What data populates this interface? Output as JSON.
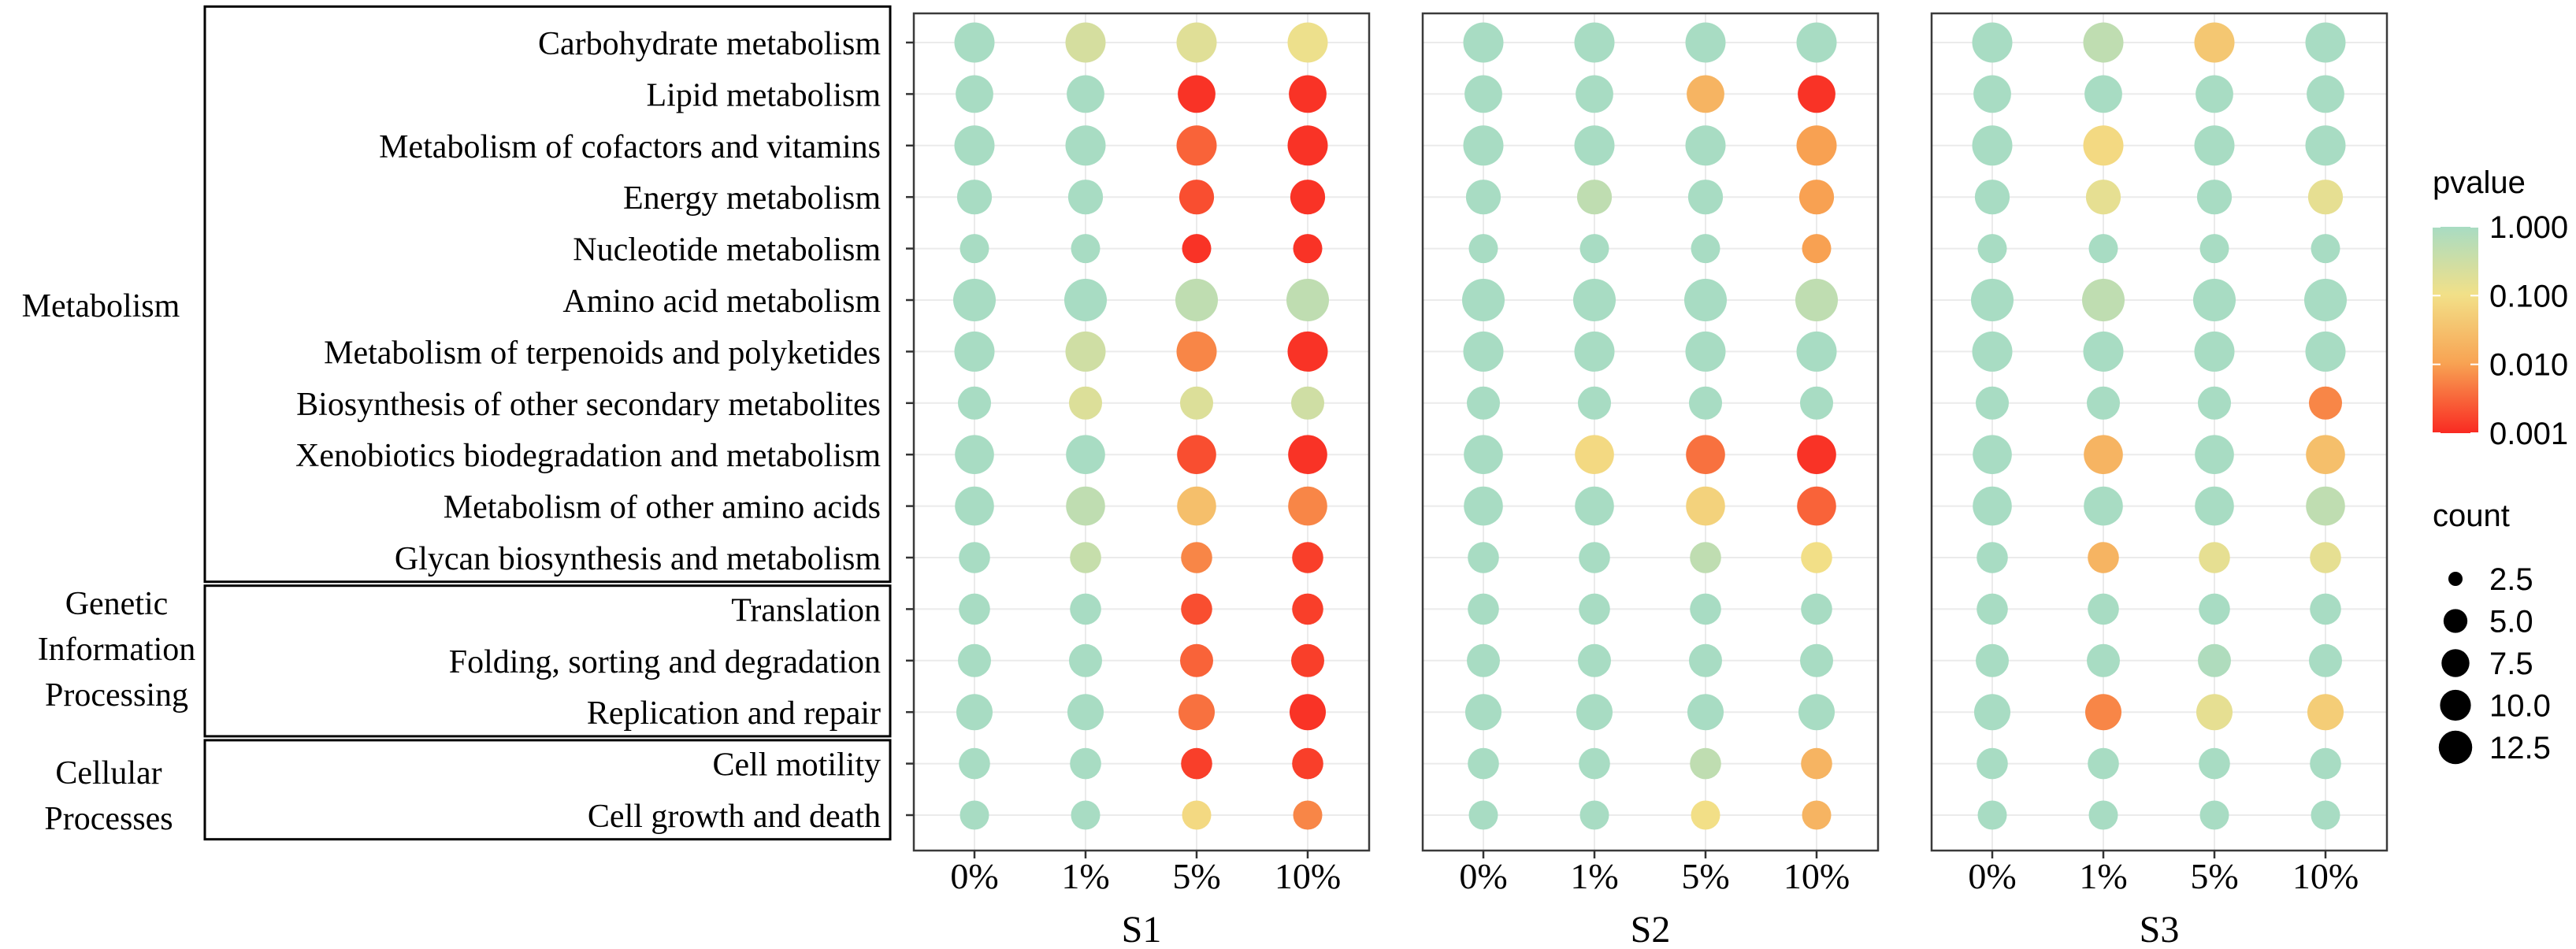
{
  "chart_data": {
    "type": "dot-plot",
    "groups": [
      {
        "name": "Metabolism",
        "lines": [
          "Metabolism"
        ],
        "rows": [
          0,
          10
        ]
      },
      {
        "name": "Genetic Information Processing",
        "lines": [
          "Genetic",
          "Information",
          "Processing"
        ],
        "rows": [
          11,
          13
        ]
      },
      {
        "name": "Cellular Processes",
        "lines": [
          "Cellular",
          "Processes"
        ],
        "rows": [
          14,
          15
        ]
      }
    ],
    "pathways": [
      "Carbohydrate metabolism",
      "Lipid metabolism",
      "Metabolism of cofactors and vitamins",
      "Energy metabolism",
      "Nucleotide metabolism",
      "Amino acid metabolism",
      "Metabolism of terpenoids and polyketides",
      "Biosynthesis of other secondary metabolites",
      "Xenobiotics biodegradation and metabolism",
      "Metabolism of other amino acids",
      "Glycan biosynthesis and metabolism",
      "Translation",
      "Folding, sorting and degradation",
      "Replication and repair",
      "Cell motility",
      "Cell growth and death"
    ],
    "counts": [
      12,
      10,
      12,
      8,
      5,
      14,
      12,
      7,
      11,
      11,
      6,
      6,
      7,
      9,
      6,
      5
    ],
    "concentrations": [
      "0%",
      "1%",
      "5%",
      "10%"
    ],
    "panels": [
      {
        "title": "S1",
        "pvalues": [
          [
            1.0,
            0.25,
            0.18,
            0.12
          ],
          [
            1.0,
            1.0,
            0.0012,
            0.0012
          ],
          [
            1.0,
            1.0,
            0.003,
            0.0012
          ],
          [
            1.0,
            1.0,
            0.002,
            0.0012
          ],
          [
            1.0,
            1.0,
            0.0012,
            0.0012
          ],
          [
            1.0,
            1.0,
            0.5,
            0.5
          ],
          [
            1.0,
            0.3,
            0.006,
            0.0012
          ],
          [
            1.0,
            0.2,
            0.2,
            0.3
          ],
          [
            1.0,
            1.0,
            0.002,
            0.0012
          ],
          [
            1.0,
            0.5,
            0.03,
            0.006
          ],
          [
            1.0,
            0.4,
            0.006,
            0.0015
          ],
          [
            1.0,
            1.0,
            0.002,
            0.0015
          ],
          [
            1.0,
            1.0,
            0.003,
            0.0015
          ],
          [
            1.0,
            1.0,
            0.004,
            0.0012
          ],
          [
            1.0,
            1.0,
            0.0015,
            0.0015
          ],
          [
            1.0,
            1.0,
            0.08,
            0.006
          ]
        ]
      },
      {
        "title": "S2",
        "pvalues": [
          [
            1.0,
            1.0,
            1.0,
            1.0
          ],
          [
            1.0,
            1.0,
            0.02,
            0.0012
          ],
          [
            1.0,
            1.0,
            1.0,
            0.01
          ],
          [
            1.0,
            0.5,
            1.0,
            0.01
          ],
          [
            1.0,
            1.0,
            1.0,
            0.01
          ],
          [
            1.0,
            1.0,
            1.0,
            0.5
          ],
          [
            1.0,
            1.0,
            1.0,
            1.0
          ],
          [
            1.0,
            1.0,
            1.0,
            1.0
          ],
          [
            1.0,
            0.08,
            0.004,
            0.0012
          ],
          [
            1.0,
            1.0,
            0.06,
            0.003
          ],
          [
            1.0,
            1.0,
            0.5,
            0.1
          ],
          [
            1.0,
            1.0,
            1.0,
            1.0
          ],
          [
            1.0,
            1.0,
            1.0,
            1.0
          ],
          [
            1.0,
            1.0,
            1.0,
            1.0
          ],
          [
            1.0,
            1.0,
            0.5,
            0.02
          ],
          [
            1.0,
            1.0,
            0.1,
            0.02
          ]
        ]
      },
      {
        "title": "S3",
        "pvalues": [
          [
            1.0,
            0.5,
            0.04,
            1.0
          ],
          [
            1.0,
            1.0,
            1.0,
            1.0
          ],
          [
            1.0,
            0.08,
            1.0,
            1.0
          ],
          [
            1.0,
            0.15,
            1.0,
            0.15
          ],
          [
            1.0,
            1.0,
            1.0,
            1.0
          ],
          [
            1.0,
            0.5,
            1.0,
            1.0
          ],
          [
            1.0,
            1.0,
            1.0,
            1.0
          ],
          [
            1.0,
            1.0,
            1.0,
            0.006
          ],
          [
            1.0,
            0.02,
            1.0,
            0.03
          ],
          [
            1.0,
            1.0,
            1.0,
            0.5
          ],
          [
            1.0,
            0.02,
            0.15,
            0.15
          ],
          [
            1.0,
            1.0,
            1.0,
            1.0
          ],
          [
            1.0,
            1.0,
            0.8,
            1.0
          ],
          [
            1.0,
            0.006,
            0.15,
            0.05
          ],
          [
            1.0,
            1.0,
            1.0,
            1.0
          ],
          [
            1.0,
            1.0,
            1.0,
            1.0
          ]
        ]
      }
    ],
    "legend": {
      "color_title": "pvalue",
      "color_ticks": [
        {
          "label": "1.000",
          "value": 1.0
        },
        {
          "label": "0.100",
          "value": 0.1
        },
        {
          "label": "0.010",
          "value": 0.01
        },
        {
          "label": "0.001",
          "value": 0.001
        }
      ],
      "color_scale": "log10",
      "colors": {
        "high": "#a8dcc3",
        "mid": "#f2e088",
        "low": "#f92a22"
      },
      "size_title": "count",
      "size_ticks": [
        {
          "label": "2.5",
          "value": 2.5
        },
        {
          "label": "5.0",
          "value": 5.0
        },
        {
          "label": "7.5",
          "value": 7.5
        },
        {
          "label": "10.0",
          "value": 10.0
        },
        {
          "label": "12.5",
          "value": 12.5
        }
      ],
      "count_range": [
        2.5,
        14
      ]
    }
  }
}
